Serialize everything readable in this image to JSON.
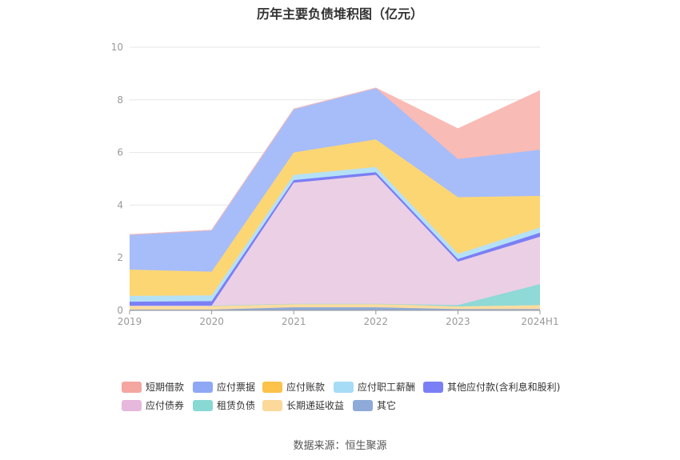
{
  "title": "历年主要负债堆积图（亿元）",
  "source": "数据来源：恒生聚源",
  "chart_data": {
    "type": "area",
    "stacked": true,
    "title": "历年主要负债堆积图（亿元）",
    "categories": [
      "2019",
      "2020",
      "2021",
      "2022",
      "2023",
      "2024H1"
    ],
    "ylim": [
      0,
      10
    ],
    "yticks": [
      "0",
      "2",
      "4",
      "6",
      "8",
      "10"
    ],
    "grid": true,
    "legend": "bottom",
    "series": [
      {
        "name": "其它",
        "color": "#8eaad8",
        "values": [
          0.03,
          0.03,
          0.12,
          0.12,
          0.05,
          0.05
        ]
      },
      {
        "name": "长期递延收益",
        "color": "#fbdca0",
        "values": [
          0.15,
          0.15,
          0.13,
          0.13,
          0.1,
          0.15
        ]
      },
      {
        "name": "租赁负债",
        "color": "#8fd9d7",
        "values": [
          0.0,
          0.0,
          0.0,
          0.0,
          0.05,
          0.8
        ]
      },
      {
        "name": "应付债券",
        "color": "#ebcfe5",
        "values": [
          0.0,
          0.0,
          4.6,
          4.9,
          1.65,
          1.8
        ]
      },
      {
        "name": "其他应付款(含利息和股利)",
        "color": "#7b7ff5",
        "values": [
          0.15,
          0.17,
          0.1,
          0.1,
          0.1,
          0.15
        ]
      },
      {
        "name": "应付职工薪酬",
        "color": "#b5e1f6",
        "values": [
          0.22,
          0.22,
          0.2,
          0.2,
          0.2,
          0.2
        ]
      },
      {
        "name": "应付账款",
        "color": "#fdd674",
        "values": [
          1.0,
          0.9,
          0.85,
          1.05,
          2.15,
          1.2
        ]
      },
      {
        "name": "应付票据",
        "color": "#a7bdf9",
        "values": [
          1.33,
          1.58,
          1.65,
          1.95,
          1.45,
          1.75
        ]
      },
      {
        "name": "短期借款",
        "color": "#f9bbb5",
        "values": [
          0.0,
          0.0,
          0.0,
          0.0,
          1.15,
          2.25
        ]
      }
    ]
  },
  "legend": {
    "row1": [
      {
        "label": "短期借款",
        "color": "#f4a6a0",
        "icon": "short-term-loan-icon"
      },
      {
        "label": "应付票据",
        "color": "#8fa8f5",
        "icon": "notes-payable-icon"
      },
      {
        "label": "应付账款",
        "color": "#fcc24a",
        "icon": "accounts-payable-icon"
      },
      {
        "label": "应付职工薪酬",
        "color": "#a6dcf5",
        "icon": "payroll-icon"
      },
      {
        "label": "其他应付款(含利息和股利)",
        "color": "#7b7ff5",
        "icon": "other-payables-icon"
      }
    ],
    "row2": [
      {
        "label": "应付债券",
        "color": "#e6b8dc",
        "icon": "bonds-payable-icon"
      },
      {
        "label": "租赁负债",
        "color": "#88d8d4",
        "icon": "lease-liability-icon"
      },
      {
        "label": "长期递延收益",
        "color": "#fcd89a",
        "icon": "deferred-income-icon"
      },
      {
        "label": "其它",
        "color": "#8eaad8",
        "icon": "other-icon"
      }
    ]
  }
}
